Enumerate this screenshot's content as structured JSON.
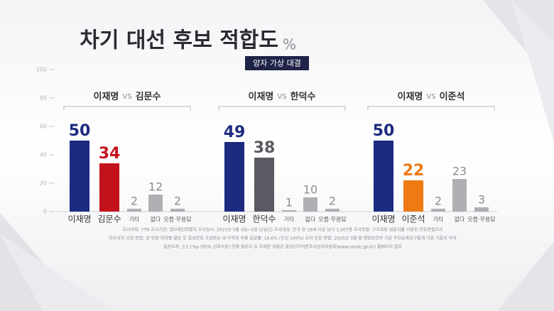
{
  "chart_data": {
    "type": "bar",
    "title": "차기 대선 후보 적합도",
    "unit": "%",
    "subtitle": "양자 가상 대결",
    "ylim": [
      0,
      100
    ],
    "yticks": [
      0,
      20,
      40,
      60,
      80,
      100
    ],
    "groups": [
      {
        "candidates": [
          "이재명",
          "김문수"
        ],
        "vs": "VS",
        "categories": [
          "이재명",
          "김문수",
          "기타",
          "없다",
          "모름·무응답"
        ],
        "values": [
          50,
          34,
          2,
          12,
          2
        ],
        "colors": [
          "#1c2a80",
          "#c4121c",
          "#b0b0b4",
          "#b0b0b4",
          "#b0b0b4"
        ]
      },
      {
        "candidates": [
          "이재명",
          "한덕수"
        ],
        "vs": "VS",
        "categories": [
          "이재명",
          "한덕수",
          "기타",
          "없다",
          "모름·무응답"
        ],
        "values": [
          49,
          38,
          1,
          10,
          2
        ],
        "colors": [
          "#1c2a80",
          "#5b5a62",
          "#b0b0b4",
          "#b0b0b4",
          "#b0b0b4"
        ]
      },
      {
        "candidates": [
          "이재명",
          "이준석"
        ],
        "vs": "VS",
        "categories": [
          "이재명",
          "이준석",
          "기타",
          "없다",
          "모름·무응답"
        ],
        "values": [
          50,
          22,
          2,
          23,
          3
        ],
        "colors": [
          "#1c2a80",
          "#ee7a14",
          "#b0b0b4",
          "#b0b0b4",
          "#b0b0b4"
        ]
      }
    ],
    "notes": [
      "조사의뢰: YTN   조사기관: 엠브레인퍼블릭   조사일시: 2025년 5월 4일~5일 (2일간)   조사대상: 전국 만 18세 이상 남녀 1,007명   조사방법: 구조화된 설문지를 이용한 전화면접조사",
      "피조사자 선정 방법: 성·연령·지역별 할당 후 휴대전화 가상번호 내 무작위 추출   응답률: 16.6% (무선 100%)   오차 보정 방법: 2025년 3월 말 행정안전부 기준 주민등록인구통계 기준 가중치 부여",
      "표본오차: ±3.1%p (95% 신뢰수준)   전체 질문지 등 자세한 내용은 중앙선거여론조사심의위원회(www.nesdc.go.kr) 홈페이지 참조"
    ]
  }
}
